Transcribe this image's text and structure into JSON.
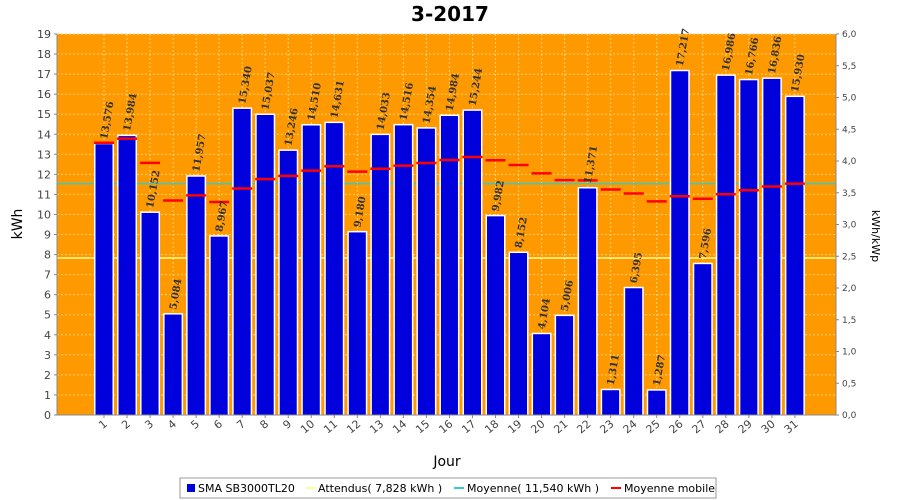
{
  "chart_data": {
    "type": "bar",
    "title": "3-2017",
    "xlabel": "Jour",
    "ylabel": "kWh",
    "ylabel_right": "kWh/kWp",
    "ylim": [
      0,
      19
    ],
    "ylim_right": [
      0.0,
      6.0
    ],
    "grid": true,
    "legend_position": "bottom",
    "colors": {
      "plot_background": "#ff9900",
      "bar": "#0000dd",
      "attendus": "#ffff99",
      "moyenne": "#33cccc",
      "moyenne_mobile": "#ff0000"
    },
    "categories": [
      "1",
      "2",
      "3",
      "4",
      "5",
      "6",
      "7",
      "8",
      "9",
      "10",
      "11",
      "12",
      "13",
      "14",
      "15",
      "16",
      "17",
      "18",
      "19",
      "20",
      "21",
      "22",
      "23",
      "24",
      "25",
      "26",
      "27",
      "28",
      "29",
      "30",
      "31"
    ],
    "y_ticks": [
      0,
      1,
      2,
      3,
      4,
      5,
      6,
      7,
      8,
      9,
      10,
      11,
      12,
      13,
      14,
      15,
      16,
      17,
      18,
      19
    ],
    "y_ticks_right": [
      "0,0",
      "0,5",
      "1,0",
      "1,5",
      "2,0",
      "2,5",
      "3,0",
      "3,5",
      "4,0",
      "4,5",
      "5,0",
      "5,5",
      "6,0"
    ],
    "series": [
      {
        "name": "SMA SB3000TL20",
        "values": [
          13.576,
          13.984,
          10.152,
          5.084,
          11.957,
          8.967,
          15.34,
          15.037,
          13.246,
          14.51,
          14.631,
          9.18,
          14.033,
          14.516,
          14.354,
          14.984,
          15.244,
          9.982,
          8.152,
          4.104,
          5.006,
          11.371,
          1.311,
          6.395,
          1.287,
          17.217,
          7.596,
          16.986,
          16.766,
          16.836,
          15.93
        ],
        "labels": [
          "13,576",
          "13,984",
          "10,152",
          "5,084",
          "11,957",
          "8,967",
          "15,340",
          "15,037",
          "13,246",
          "14,510",
          "14,631",
          "9,180",
          "14,033",
          "14,516",
          "14,354",
          "14,984",
          "15,244",
          "9,982",
          "8,152",
          "4,104",
          "5,006",
          "11,371",
          "1,311",
          "6,395",
          "1,287",
          "17,217",
          "7,596",
          "16,986",
          "16,766",
          "16,836",
          "15,930"
        ]
      },
      {
        "name": "Attendus( 7,828 kWh )",
        "value": 7.828
      },
      {
        "name": "Moyenne( 11,540 kWh )",
        "value": 11.54
      },
      {
        "name": "Moyenne mobile",
        "values": [
          13.576,
          13.78,
          12.571,
          10.699,
          10.951,
          10.62,
          11.294,
          11.762,
          11.927,
          12.185,
          12.407,
          12.137,
          12.28,
          12.439,
          12.566,
          12.717,
          12.865,
          12.705,
          12.466,
          12.048,
          11.713,
          11.698,
          11.246,
          11.044,
          10.654,
          10.907,
          10.785,
          11.007,
          11.206,
          11.395,
          11.54
        ]
      }
    ]
  }
}
